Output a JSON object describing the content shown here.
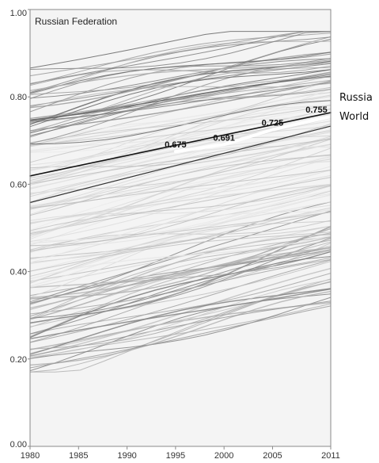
{
  "chart_data": {
    "type": "line",
    "title": "Russian Federation",
    "xlabel": "",
    "ylabel": "",
    "xlim": [
      1980,
      2011
    ],
    "ylim": [
      0,
      1
    ],
    "x_ticks": [
      "1980",
      "1985",
      "1990",
      "1995",
      "2000",
      "2005",
      "2011"
    ],
    "x_tick_values": [
      1980,
      1985,
      1990,
      1995,
      2000,
      2005,
      2011
    ],
    "y_ticks": [
      "0.00",
      "0.20",
      "0.40",
      "0.60",
      "0.80",
      "1.00"
    ],
    "y_tick_values": [
      0,
      0.2,
      0.4,
      0.6,
      0.8,
      1.0
    ],
    "grid": false,
    "background_color": "#f4f4f4",
    "series": [
      {
        "name": "Russia",
        "color": "#111111",
        "x": [
          1980,
          2011
        ],
        "values": [
          0.619,
          0.764
        ]
      },
      {
        "name": "World",
        "color": "#333333",
        "x": [
          1980,
          2011
        ],
        "values": [
          0.558,
          0.733
        ]
      },
      {
        "name": "",
        "color": "#ffffff",
        "x": [
          1995,
          2000,
          2005,
          2011
        ],
        "values": [
          0.675,
          0.691,
          0.725,
          0.755
        ]
      }
    ],
    "annotations": [
      {
        "text": "0.675",
        "x": 1995,
        "y": 0.675
      },
      {
        "text": "0.691",
        "x": 2000,
        "y": 0.691
      },
      {
        "text": "0.725",
        "x": 2005,
        "y": 0.725
      },
      {
        "text": "0.755",
        "x": 2011,
        "y": 0.755
      }
    ]
  }
}
